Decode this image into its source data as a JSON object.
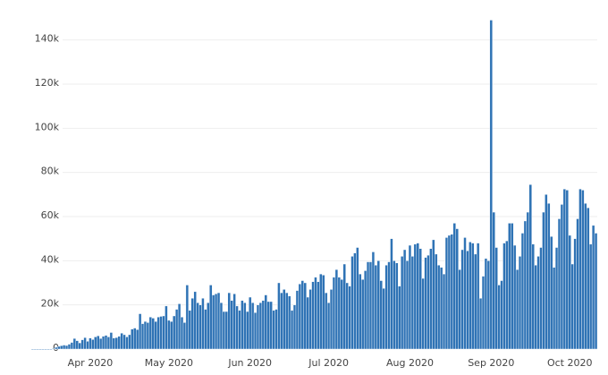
{
  "chart_data": {
    "type": "bar",
    "categories": [
      null,
      null,
      null,
      null,
      null,
      null,
      null,
      null,
      null,
      null,
      null,
      null,
      null,
      null,
      null,
      null,
      null,
      null,
      null,
      null,
      null,
      null,
      "Apr 2020",
      null,
      null,
      null,
      null,
      null,
      null,
      null,
      null,
      null,
      null,
      null,
      null,
      null,
      null,
      null,
      null,
      null,
      null,
      null,
      null,
      null,
      null,
      null,
      null,
      null,
      null,
      null,
      null,
      null,
      "May 2020",
      null,
      null,
      null,
      null,
      null,
      null,
      null,
      null,
      null,
      null,
      null,
      null,
      null,
      null,
      null,
      null,
      null,
      null,
      null,
      null,
      null,
      null,
      null,
      null,
      null,
      null,
      null,
      null,
      null,
      null,
      "Jun 2020",
      null,
      null,
      null,
      null,
      null,
      null,
      null,
      null,
      null,
      null,
      null,
      null,
      null,
      null,
      null,
      null,
      null,
      null,
      null,
      null,
      null,
      null,
      null,
      null,
      null,
      null,
      null,
      null,
      null,
      "Jul 2020",
      null,
      null,
      null,
      null,
      null,
      null,
      null,
      null,
      null,
      null,
      null,
      null,
      null,
      null,
      null,
      null,
      null,
      null,
      null,
      null,
      null,
      null,
      null,
      null,
      null,
      null,
      null,
      null,
      null,
      null,
      "Aug 2020",
      null,
      null,
      null,
      null,
      null,
      null,
      null,
      null,
      null,
      null,
      null,
      null,
      null,
      null,
      null,
      null,
      null,
      null,
      null,
      null,
      null,
      null,
      null,
      null,
      null,
      null,
      null,
      null,
      null,
      null,
      "Sep 2020",
      null,
      null,
      null,
      null,
      null,
      null,
      null,
      null,
      null,
      null,
      null,
      null,
      null,
      null,
      null,
      null,
      null,
      null,
      null,
      null,
      null,
      null,
      null,
      null,
      null,
      null,
      null,
      null,
      null,
      "Oct 2020",
      null,
      null,
      null,
      null,
      null,
      null,
      null,
      null,
      null,
      null
    ],
    "values": [
      0,
      0,
      0,
      0,
      0,
      0,
      0,
      0,
      300,
      800,
      1200,
      1500,
      1800,
      1600,
      2200,
      3000,
      4800,
      3800,
      2800,
      4200,
      5200,
      3500,
      5000,
      4300,
      5500,
      6000,
      4800,
      5800,
      6200,
      5500,
      7500,
      5000,
      5200,
      5800,
      7200,
      6500,
      5500,
      6500,
      9000,
      9500,
      8800,
      16000,
      11500,
      12500,
      12000,
      14500,
      14000,
      12500,
      14500,
      14800,
      15000,
      19500,
      13000,
      12500,
      15000,
      18000,
      20500,
      14500,
      12000,
      29000,
      17500,
      23000,
      26000,
      21000,
      20000,
      23000,
      18000,
      21000,
      29000,
      24500,
      25000,
      25500,
      21000,
      17000,
      17000,
      25500,
      22000,
      25000,
      19500,
      17500,
      22000,
      21000,
      17000,
      23500,
      21000,
      16500,
      20000,
      21000,
      22000,
      24500,
      21500,
      21500,
      17500,
      18000,
      30000,
      25500,
      27000,
      25500,
      24000,
      17500,
      20000,
      26500,
      29500,
      31000,
      30000,
      23500,
      27000,
      30500,
      32500,
      30500,
      34000,
      33500,
      25500,
      21000,
      27000,
      32500,
      36000,
      32500,
      31500,
      38500,
      30000,
      28500,
      42000,
      43500,
      46000,
      34000,
      31500,
      35500,
      39500,
      39500,
      44000,
      38000,
      40000,
      31000,
      27500,
      38000,
      39500,
      50000,
      40000,
      39000,
      28500,
      42000,
      45000,
      40000,
      47000,
      42000,
      47500,
      48000,
      45500,
      32000,
      41500,
      42500,
      45500,
      49500,
      43000,
      38000,
      37000,
      34000,
      50500,
      51500,
      52000,
      57000,
      54500,
      36000,
      45000,
      50500,
      44500,
      48500,
      48000,
      43000,
      48000,
      23000,
      33000,
      41000,
      40000,
      149000,
      62000,
      46000,
      29000,
      31000,
      48000,
      49000,
      57000,
      57000,
      47000,
      36000,
      42000,
      52500,
      58000,
      62000,
      74500,
      47500,
      38000,
      42000,
      46000,
      62000,
      70000,
      66000,
      51000,
      37000,
      46000,
      59000,
      65500,
      72500,
      72000,
      51500,
      38500,
      50000,
      59000,
      72500,
      72000,
      66000,
      64000,
      47500,
      56000,
      52500
    ],
    "color": "#2f73b5",
    "ylim": [
      0,
      150000
    ],
    "yticks": [
      {
        "value": 0,
        "label": "0"
      },
      {
        "value": 20000,
        "label": "20k"
      },
      {
        "value": 40000,
        "label": "40k"
      },
      {
        "value": 60000,
        "label": "60k"
      },
      {
        "value": 80000,
        "label": "80k"
      },
      {
        "value": 100000,
        "label": "100k"
      },
      {
        "value": 120000,
        "label": "120k"
      },
      {
        "value": 140000,
        "label": "140k"
      }
    ],
    "grid": true
  }
}
